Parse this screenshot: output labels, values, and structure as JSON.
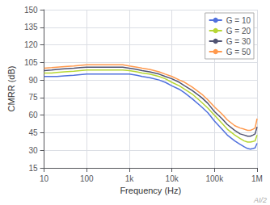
{
  "chart_data": {
    "type": "line",
    "xlabel": "Frequency (Hz)",
    "ylabel": "CMRR (dB)",
    "log": "x",
    "xlim": [
      10,
      1000000
    ],
    "xticks": [
      10,
      100,
      {
        "value": 1000,
        "label": "1k"
      },
      {
        "value": 10000,
        "label": "10k"
      },
      {
        "value": 100000,
        "label": "100k"
      },
      {
        "value": 1000000,
        "label": "1M"
      }
    ],
    "ylim": [
      15,
      150
    ],
    "yticks": [
      15,
      30,
      45,
      60,
      75,
      90,
      105,
      120,
      135,
      150
    ],
    "grid": true,
    "legend": "upper right",
    "annotations": [
      "AI/2"
    ],
    "x": [
      10,
      15,
      20,
      30,
      50,
      70,
      100,
      150,
      200,
      300,
      500,
      700,
      1000,
      1500,
      2000,
      3000,
      5000,
      7000,
      10000,
      15000,
      20000,
      30000,
      50000,
      70000,
      100000,
      150000,
      200000,
      300000,
      400000,
      500000,
      600000,
      700000,
      800000,
      900000,
      1000000
    ],
    "series": [
      {
        "name": "G = 10",
        "values": [
          93,
          93,
          93,
          93.5,
          94,
          94.5,
          95,
          95,
          95,
          95,
          95,
          95,
          95,
          94,
          93,
          92,
          90,
          88,
          85,
          82,
          79,
          74,
          67,
          62,
          55,
          48,
          43,
          38,
          35,
          33,
          31.5,
          31,
          31.5,
          32,
          36
        ]
      },
      {
        "name": "G = 20",
        "values": [
          96,
          96,
          96.5,
          97,
          97.5,
          98,
          98.5,
          98.5,
          98.5,
          98.5,
          98.5,
          98.5,
          98,
          97,
          96,
          95,
          93,
          91,
          88,
          85,
          82,
          78,
          71,
          66,
          60,
          53,
          48,
          43,
          40,
          38,
          37,
          37,
          37.5,
          38,
          43
        ]
      },
      {
        "name": "G = 30",
        "values": [
          98,
          98.5,
          99,
          99.5,
          100,
          100.5,
          101,
          101,
          101,
          101,
          101,
          101,
          100,
          99,
          98,
          97,
          95,
          93,
          91,
          88,
          85,
          81,
          75,
          70,
          63,
          57,
          52,
          47,
          44,
          43,
          42,
          42,
          43,
          44,
          50
        ]
      },
      {
        "name": "G = 50",
        "values": [
          100,
          100.5,
          101,
          101.5,
          102,
          102.5,
          103,
          103,
          103,
          103,
          103,
          103,
          102,
          101,
          100,
          99,
          97,
          95,
          93,
          90,
          88,
          84,
          78,
          73,
          67,
          61,
          56,
          51,
          49,
          48,
          47,
          47,
          48,
          49,
          57
        ]
      }
    ]
  }
}
